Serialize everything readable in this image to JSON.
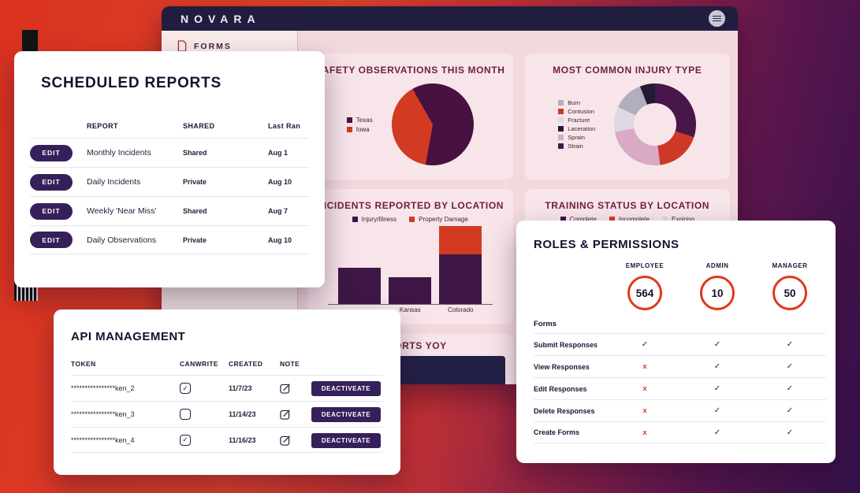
{
  "palette": {
    "accent_purple": "#35205c",
    "accent_red": "#e2371d",
    "header_navy": "#211d3f",
    "content_pink": "#f2d9de",
    "card_pink": "#f8e5ea"
  },
  "window": {
    "logo": "NOVARA",
    "menu_icon": "hamburger-icon",
    "sidebar": {
      "forms_label": "FORMS",
      "forms_icon": "document-icon"
    }
  },
  "chart_data": [
    {
      "type": "pie",
      "title": "SAFETY OBSERVATIONS THIS MONTH",
      "legend": [
        {
          "label": "Texas",
          "color": "#47123f"
        },
        {
          "label": "Iowa",
          "color": "#d23a22"
        }
      ],
      "start_angle": 190,
      "segments": [
        {
          "label": "Iowa",
          "value": 39,
          "color": "#d23a22"
        },
        {
          "label": "Texas",
          "value": 61,
          "color": "#47123f"
        }
      ]
    },
    {
      "type": "pie",
      "subtype": "donut",
      "title": "MOST COMMON INJURY TYPE",
      "legend": [
        {
          "label": "Burn",
          "color": "#b3aebd"
        },
        {
          "label": "Contusion",
          "color": "#cd3827"
        },
        {
          "label": "Fracture",
          "color": "#dcd9e2"
        },
        {
          "label": "Laceration",
          "color": "#241a33"
        },
        {
          "label": "Sprain",
          "color": "#d9a9c6"
        },
        {
          "label": "Strain",
          "color": "#47164a"
        }
      ],
      "start_angle": 0,
      "segments": [
        {
          "label": "Strain",
          "value": 30,
          "color": "#47164a"
        },
        {
          "label": "Contusion",
          "value": 18,
          "color": "#cd3827"
        },
        {
          "label": "Sprain",
          "value": 24,
          "color": "#d9a9c6"
        },
        {
          "label": "Fracture",
          "value": 10,
          "color": "#dcd9e2"
        },
        {
          "label": "Burn",
          "value": 12,
          "color": "#b3aebd"
        },
        {
          "label": "Laceration",
          "value": 6,
          "color": "#241a33"
        }
      ]
    },
    {
      "type": "bar",
      "stacked": true,
      "title": "INCIDENTS REPORTED BY LOCATION",
      "categories": [
        "",
        "Kansas",
        "Colorado"
      ],
      "series": [
        {
          "name": "Injury/Illness",
          "color": "#3f1747",
          "values": [
            46,
            34,
            64
          ]
        },
        {
          "name": "Property Damage",
          "color": "#d23a22",
          "values": [
            0,
            0,
            36
          ]
        }
      ],
      "ylim": [
        0,
        100
      ]
    },
    {
      "type": "bar",
      "title": "TRAINING STATUS BY LOCATION",
      "legend": [
        {
          "label": "Complete",
          "color": "#3f1747"
        },
        {
          "label": "Incomplete",
          "color": "#d23a22"
        },
        {
          "label": "Expiring",
          "color": "#ded9e0"
        }
      ]
    },
    {
      "type": "unknown",
      "title": "REPORTS YOY"
    }
  ],
  "scheduled_reports": {
    "title": "SCHEDULED REPORTS",
    "columns": {
      "report": "REPORT",
      "shared": "SHARED",
      "last_ran": "Last Ran"
    },
    "edit_label": "EDIT",
    "rows": [
      {
        "report": "Monthly Incidents",
        "shared": "Shared",
        "last_ran": "Aug 1"
      },
      {
        "report": "Daily Incidents",
        "shared": "Private",
        "last_ran": "Aug 10"
      },
      {
        "report": "Weekly 'Near Miss'",
        "shared": "Shared",
        "last_ran": "Aug 7"
      },
      {
        "report": "Daily Observations",
        "shared": "Private",
        "last_ran": "Aug 10"
      }
    ]
  },
  "api_management": {
    "title": "API MANAGEMENT",
    "columns": {
      "token": "TOKEN",
      "can_write": "CANWRITE",
      "created": "CREATED",
      "note": "NOTE"
    },
    "deactivate_label": "DEACTIVEATE",
    "rows": [
      {
        "token": "****************ken_2",
        "can_write": true,
        "created": "11/7/23"
      },
      {
        "token": "****************ken_3",
        "can_write": false,
        "created": "11/14/23"
      },
      {
        "token": "****************ken_4",
        "can_write": true,
        "created": "11/16/23"
      }
    ]
  },
  "roles_permissions": {
    "title": "ROLES & PERMISSIONS",
    "section_label": "Forms",
    "roles": [
      {
        "name": "EMPLOYEE",
        "count": "564"
      },
      {
        "name": "ADMIN",
        "count": "10"
      },
      {
        "name": "MANAGER",
        "count": "50"
      }
    ],
    "rows": [
      {
        "action": "Submit Responses",
        "marks": [
          "✓",
          "✓",
          "✓"
        ]
      },
      {
        "action": "View Responses",
        "marks": [
          "x",
          "✓",
          "✓"
        ]
      },
      {
        "action": "Edit Responses",
        "marks": [
          "x",
          "✓",
          "✓"
        ]
      },
      {
        "action": "Delete Responses",
        "marks": [
          "x",
          "✓",
          "✓"
        ]
      },
      {
        "action": "Create Forms",
        "marks": [
          "x",
          "✓",
          "✓"
        ]
      }
    ]
  }
}
